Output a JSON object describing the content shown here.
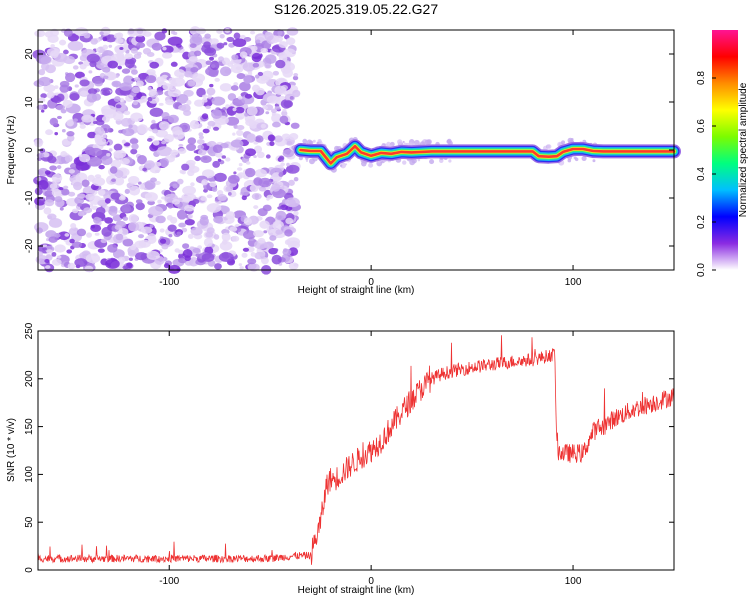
{
  "title": "S126.2025.319.05.22.G27",
  "chart_data": [
    {
      "type": "heatmap",
      "xlabel": "Height of straight line (km)",
      "ylabel": "Frequency (Hz)",
      "xlim": [
        -165,
        150
      ],
      "ylim": [
        -25,
        25
      ],
      "x_ticks": [
        -100,
        0,
        100
      ],
      "y_ticks": [
        -20,
        -10,
        0,
        10,
        20
      ],
      "noise_region_x": [
        -165,
        -37
      ],
      "signal_trace": {
        "x": [
          -35,
          -30,
          -25,
          -20,
          -17,
          -12,
          -8,
          -5,
          0,
          5,
          10,
          15,
          20,
          30,
          40,
          60,
          70,
          80,
          83,
          88,
          92,
          95,
          100,
          105,
          110,
          115,
          130,
          150
        ],
        "freq": [
          0,
          -0.2,
          -0.2,
          -2.8,
          -1.5,
          -0.8,
          0.8,
          -0.5,
          -1.2,
          -0.6,
          -0.8,
          -0.4,
          -0.5,
          -0.3,
          -0.3,
          -0.3,
          -0.3,
          -0.3,
          -1.3,
          -1.4,
          -1.3,
          -0.4,
          0.2,
          0.2,
          -0.2,
          -0.3,
          -0.3,
          -0.3
        ]
      },
      "colorbar": {
        "label": "Normalized spectral amplitude",
        "ticks": [
          0.0,
          0.2,
          0.4,
          0.6,
          0.8
        ],
        "range": [
          0,
          1
        ],
        "colors": [
          "#ffffff",
          "#8a2be2",
          "#0000ff",
          "#00bfff",
          "#00ff7f",
          "#7cfc00",
          "#ffff00",
          "#ff8c00",
          "#ff0000",
          "#ff1493"
        ]
      }
    },
    {
      "type": "line",
      "xlabel": "Height of straight line (km)",
      "ylabel": "SNR (10 * v/v)",
      "xlim": [
        -165,
        150
      ],
      "ylim": [
        0,
        250
      ],
      "x_ticks": [
        -100,
        0,
        100
      ],
      "y_ticks": [
        0,
        50,
        100,
        150,
        200,
        250
      ],
      "color": "#ee3333",
      "series": [
        {
          "x": [
            -165,
            -150,
            -130,
            -110,
            -90,
            -70,
            -50,
            -37,
            -30,
            -25,
            -22,
            -20,
            -18,
            -15,
            -10,
            -5,
            0,
            5,
            10,
            15,
            20,
            25,
            30,
            35,
            40,
            50,
            60,
            70,
            80,
            88,
            91,
            92,
            95,
            100,
            105,
            110,
            115,
            120,
            125,
            130,
            140,
            150
          ],
          "values": [
            12,
            12,
            12,
            12,
            12,
            12,
            12,
            15,
            15,
            50,
            90,
            95,
            95,
            100,
            110,
            118,
            125,
            135,
            150,
            165,
            178,
            190,
            200,
            205,
            208,
            212,
            215,
            218,
            220,
            224,
            226,
            125,
            122,
            122,
            122,
            145,
            150,
            158,
            163,
            168,
            175,
            182
          ]
        }
      ]
    }
  ]
}
